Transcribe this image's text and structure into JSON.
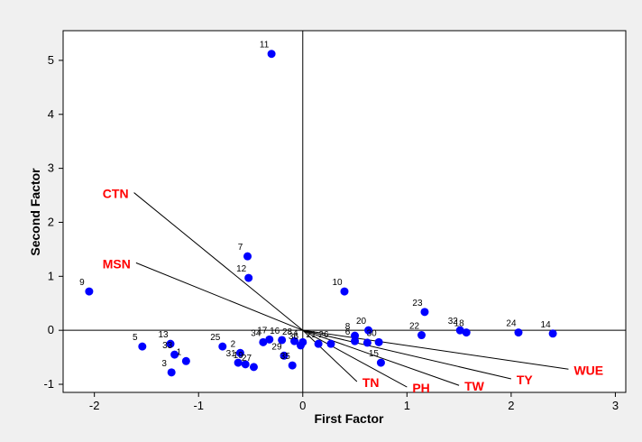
{
  "chart_data": {
    "type": "scatter",
    "title": "",
    "xlabel": "First Factor",
    "ylabel": "Second Factor",
    "xlim": [
      -2.3,
      3.1
    ],
    "ylim": [
      -1.15,
      5.55
    ],
    "x_ticks": [
      "-2",
      "-1",
      "0",
      "1",
      "2",
      "3"
    ],
    "y_ticks": [
      "-1",
      "0",
      "1",
      "2",
      "3",
      "4",
      "5"
    ],
    "grid": false,
    "reference_lines": {
      "x": 0,
      "y": 0
    },
    "point_color": "#0000ff",
    "vector_label_color": "#ff0000",
    "points": [
      {
        "label": "1",
        "x": -1.12,
        "y": -0.57
      },
      {
        "label": "2",
        "x": -0.6,
        "y": -0.42
      },
      {
        "label": "3",
        "x": -1.26,
        "y": -0.78
      },
      {
        "label": "5",
        "x": -1.54,
        "y": -0.3
      },
      {
        "label": "6",
        "x": 0.5,
        "y": -0.2
      },
      {
        "label": "7",
        "x": -0.53,
        "y": 1.37
      },
      {
        "label": "8",
        "x": 0.5,
        "y": -0.1
      },
      {
        "label": "9",
        "x": -2.05,
        "y": 0.72
      },
      {
        "label": "10",
        "x": 0.4,
        "y": 0.72
      },
      {
        "label": "11",
        "x": -0.3,
        "y": 5.12
      },
      {
        "label": "12",
        "x": -0.52,
        "y": 0.97
      },
      {
        "label": "13",
        "x": -1.27,
        "y": -0.25
      },
      {
        "label": "14",
        "x": 2.4,
        "y": -0.06
      },
      {
        "label": "15",
        "x": 0.75,
        "y": -0.6
      },
      {
        "label": "16",
        "x": -0.2,
        "y": -0.18
      },
      {
        "label": "17",
        "x": -0.32,
        "y": -0.17
      },
      {
        "label": "18",
        "x": 1.57,
        "y": -0.04
      },
      {
        "label": "19",
        "x": -0.55,
        "y": -0.63
      },
      {
        "label": "20",
        "x": 0.63,
        "y": 0.0
      },
      {
        "label": "21",
        "x": 0.15,
        "y": -0.25
      },
      {
        "label": "22",
        "x": 1.14,
        "y": -0.09
      },
      {
        "label": "23",
        "x": 1.17,
        "y": 0.34
      },
      {
        "label": "24",
        "x": 2.07,
        "y": -0.04
      },
      {
        "label": "25",
        "x": -0.77,
        "y": -0.3
      },
      {
        "label": "26",
        "x": 0.27,
        "y": -0.25
      },
      {
        "label": "27",
        "x": -0.47,
        "y": -0.68
      },
      {
        "label": "28",
        "x": -0.08,
        "y": -0.2
      },
      {
        "label": "29",
        "x": -0.18,
        "y": -0.47
      },
      {
        "label": "30",
        "x": 0.73,
        "y": -0.22
      },
      {
        "label": "31",
        "x": -0.62,
        "y": -0.6
      },
      {
        "label": "32",
        "x": 1.51,
        "y": 0.0
      },
      {
        "label": "33",
        "x": -1.23,
        "y": -0.45
      },
      {
        "label": "34",
        "x": -0.38,
        "y": -0.22
      },
      {
        "label": "35",
        "x": -0.1,
        "y": -0.65
      },
      {
        "label": "36",
        "x": -0.02,
        "y": -0.28
      },
      {
        "label": "4",
        "x": 0.0,
        "y": -0.22
      },
      {
        "label": "",
        "x": 0.62,
        "y": -0.23
      }
    ],
    "vectors": [
      {
        "label": "CTN",
        "x": -1.62,
        "y": 2.55
      },
      {
        "label": "MSN",
        "x": -1.6,
        "y": 1.25
      },
      {
        "label": "TN",
        "x": 0.52,
        "y": -0.95
      },
      {
        "label": "PH",
        "x": 1.0,
        "y": -1.05
      },
      {
        "label": "TW",
        "x": 1.5,
        "y": -1.02
      },
      {
        "label": "TY",
        "x": 2.0,
        "y": -0.9
      },
      {
        "label": "WUE",
        "x": 2.55,
        "y": -0.72
      }
    ]
  }
}
